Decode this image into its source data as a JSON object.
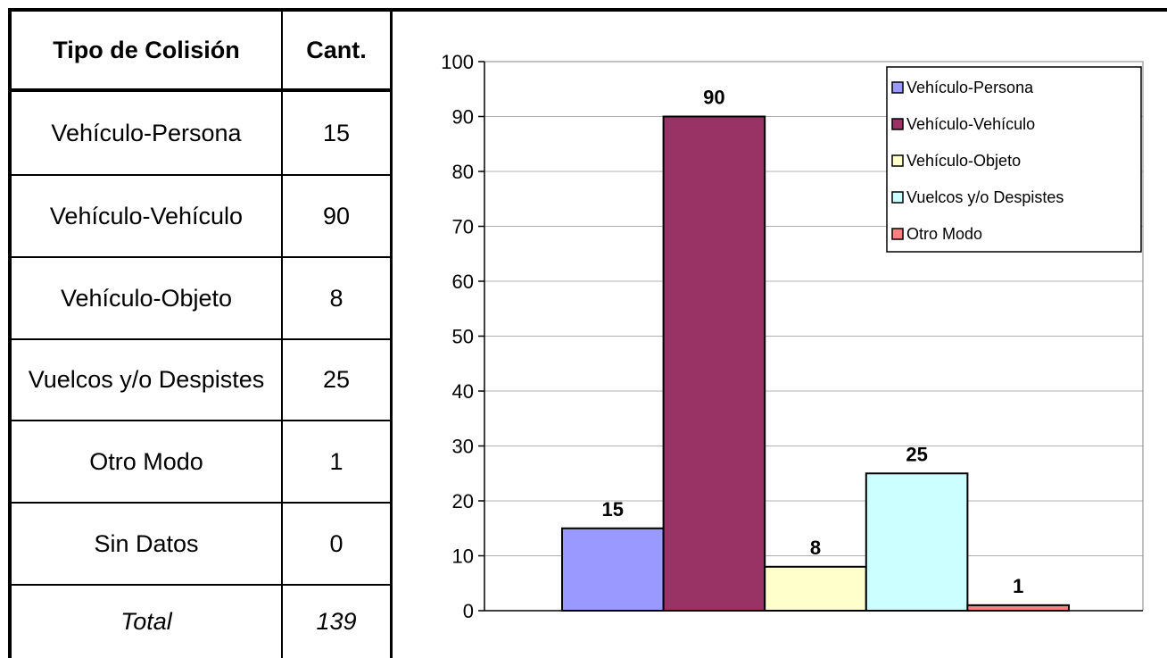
{
  "table": {
    "header": {
      "name": "Tipo de Colisión",
      "value": "Cant."
    },
    "rows": [
      {
        "name": "Vehículo-Persona",
        "value": "15"
      },
      {
        "name": "Vehículo-Vehículo",
        "value": "90"
      },
      {
        "name": "Vehículo-Objeto",
        "value": "8"
      },
      {
        "name": "Vuelcos y/o Despistes",
        "value": "25"
      },
      {
        "name": "Otro Modo",
        "value": "1"
      },
      {
        "name": "Sin Datos",
        "value": "0"
      }
    ],
    "total": {
      "name": "Total",
      "value": "139"
    }
  },
  "chart_data": {
    "type": "bar",
    "title": "",
    "xlabel": "",
    "ylabel": "",
    "ylim": [
      0,
      100
    ],
    "y_ticks": [
      0,
      10,
      20,
      30,
      40,
      50,
      60,
      70,
      80,
      90,
      100
    ],
    "grid": true,
    "legend_position": "top-right",
    "series": [
      {
        "name": "Vehículo-Persona",
        "value": 15,
        "color": "#9999FF"
      },
      {
        "name": "Vehículo-Vehículo",
        "value": 90,
        "color": "#993366"
      },
      {
        "name": "Vehículo-Objeto",
        "value": 8,
        "color": "#FFFFCC"
      },
      {
        "name": "Vuelcos y/o Despistes",
        "value": 25,
        "color": "#CCFFFF"
      },
      {
        "name": "Otro Modo",
        "value": 1,
        "color": "#FF8080"
      }
    ]
  }
}
